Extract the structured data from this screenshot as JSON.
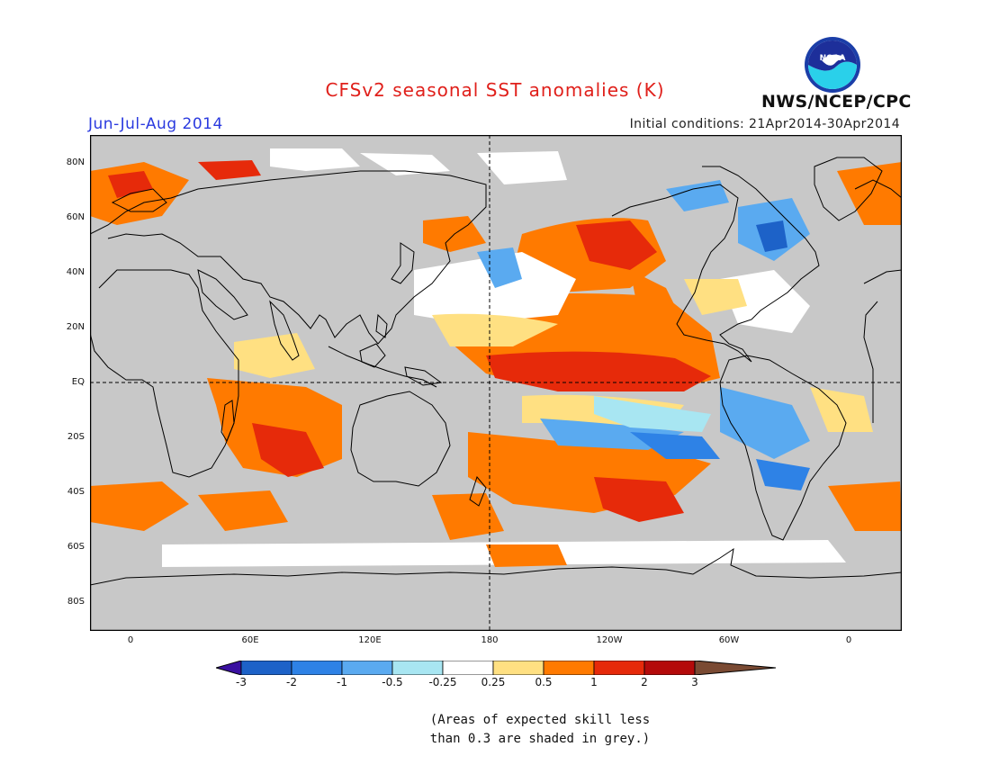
{
  "header": {
    "title": "CFSv2 seasonal SST anomalies (K)",
    "period": "Jun-Jul-Aug 2014",
    "initial_conditions": "Initial conditions: 21Apr2014-30Apr2014",
    "agency": "NWS/NCEP/CPC",
    "logo_text": "NOAA"
  },
  "colors": {
    "title": "#e0201b",
    "period": "#2a3adf",
    "land": "#c8c8c8",
    "coastline": "#000000"
  },
  "map": {
    "lat_labels": [
      "80N",
      "60N",
      "40N",
      "20N",
      "EQ",
      "20S",
      "40S",
      "60S",
      "80S"
    ],
    "lon_labels": [
      "0",
      "60E",
      "120E",
      "180",
      "120W",
      "60W",
      "0"
    ]
  },
  "colorbar": {
    "labels": [
      "-3",
      "-2",
      "-1",
      "-0.5",
      "-0.25",
      "0.25",
      "0.5",
      "1",
      "2",
      "3"
    ],
    "colors": [
      "#3a10a0",
      "#1d62c8",
      "#2e82e6",
      "#5aaaf0",
      "#a8e6f2",
      "#ffffff",
      "#ffe082",
      "#ff7a00",
      "#e62a0a",
      "#b40a0a",
      "#7a4a33"
    ]
  },
  "footnote": {
    "line1": "(Areas of expected skill less",
    "line2": "than 0.3 are shaded in grey.)"
  }
}
